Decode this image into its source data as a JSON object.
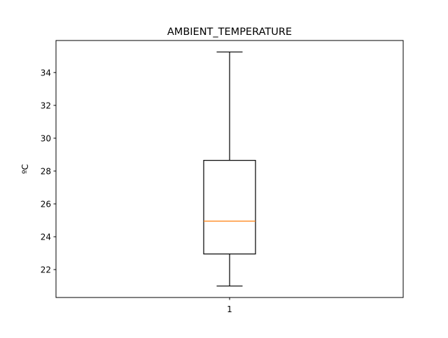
{
  "chart_data": {
    "type": "box",
    "title": "AMBIENT_TEMPERATURE",
    "xlabel": "",
    "ylabel": "ºC",
    "categories": [
      "1"
    ],
    "boxes": [
      {
        "category": "1",
        "whisker_low": 21.0,
        "q1": 22.95,
        "median": 24.95,
        "q3": 28.65,
        "whisker_high": 35.25
      }
    ],
    "yticks": [
      22,
      24,
      26,
      28,
      30,
      32,
      34
    ],
    "ylim": [
      20.3,
      35.95
    ],
    "grid": false,
    "colors": {
      "box": "#000000",
      "median": "#ff7f0e",
      "axes": "#000000"
    }
  }
}
